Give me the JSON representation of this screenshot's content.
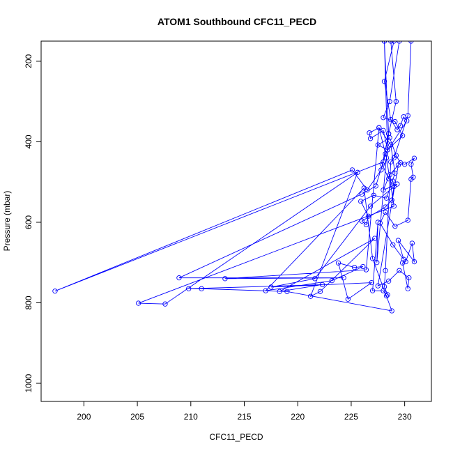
{
  "chart_data": {
    "type": "line",
    "title": "ATOM1 Southbound CFC11_PECD",
    "xlabel": "CFC11_PECD",
    "ylabel": "Pressure (mbar)",
    "xlim": [
      196,
      232.5
    ],
    "ylim": [
      1045,
      150
    ],
    "y_inverted": true,
    "x_ticks": [
      200,
      205,
      210,
      215,
      220,
      225,
      230
    ],
    "y_ticks": [
      200,
      400,
      600,
      800,
      1000
    ],
    "marker": "open-circle",
    "line_color": "#0000ff",
    "grid": false,
    "series": [
      {
        "values": [
          [
            228.7,
            150
          ],
          [
            229.2,
            300
          ],
          [
            228.5,
            380
          ],
          [
            227.8,
            470
          ],
          [
            226.5,
            520
          ],
          [
            225.1,
            470
          ],
          [
            197.3,
            771
          ],
          [
            228.0,
            450
          ],
          [
            227.3,
            510
          ],
          [
            226.0,
            530
          ],
          [
            208.9,
            738
          ],
          [
            224.3,
            738
          ],
          [
            213.2,
            740
          ],
          [
            226.4,
            718
          ],
          [
            227.6,
            365
          ],
          [
            228.3,
            440
          ],
          [
            229.0,
            560
          ],
          [
            205.1,
            801
          ],
          [
            207.6,
            803
          ],
          [
            225.6,
            476
          ],
          [
            221.2,
            784
          ],
          [
            222.1,
            772
          ],
          [
            227.2,
            640
          ],
          [
            218.3,
            772
          ],
          [
            222.3,
            755
          ],
          [
            209.8,
            765
          ],
          [
            211.0,
            765
          ],
          [
            219.0,
            772
          ],
          [
            228.8,
            820
          ],
          [
            227.0,
            690
          ],
          [
            226.2,
            515
          ],
          [
            217.0,
            770
          ],
          [
            223.2,
            745
          ],
          [
            226.1,
            710
          ],
          [
            225.3,
            712
          ],
          [
            223.8,
            701
          ],
          [
            224.7,
            791
          ],
          [
            226.9,
            750
          ],
          [
            217.5,
            761
          ],
          [
            221.6,
            740
          ],
          [
            226.8,
            560
          ],
          [
            229.3,
            505
          ],
          [
            228.0,
            520
          ],
          [
            228.6,
            482
          ],
          [
            229.4,
            458
          ],
          [
            227.5,
            758
          ],
          [
            228.5,
            746
          ],
          [
            229.5,
            720
          ],
          [
            230.4,
            738
          ],
          [
            230.3,
            765
          ],
          [
            229.8,
            701
          ],
          [
            230.1,
            698
          ],
          [
            230.7,
            652
          ],
          [
            230.9,
            698
          ],
          [
            229.4,
            645
          ],
          [
            229.9,
            692
          ],
          [
            228.9,
            656
          ],
          [
            227.7,
            602
          ],
          [
            228.2,
            575
          ],
          [
            229.1,
            610
          ],
          [
            230.3,
            595
          ],
          [
            230.6,
            493
          ],
          [
            230.8,
            488
          ],
          [
            230.6,
            456
          ],
          [
            230.9,
            441
          ],
          [
            230.0,
            456
          ],
          [
            229.6,
            452
          ],
          [
            229.2,
            434
          ],
          [
            228.6,
            390
          ],
          [
            227.5,
            408
          ],
          [
            228.4,
            420
          ],
          [
            229.8,
            385
          ],
          [
            229.1,
            350
          ],
          [
            228.0,
            340
          ],
          [
            228.6,
            300
          ],
          [
            229.5,
            150
          ],
          [
            228.1,
            150
          ],
          [
            228.4,
            420
          ],
          [
            228.0,
            372
          ],
          [
            226.8,
            392
          ],
          [
            226.7,
            378
          ],
          [
            227.6,
            365
          ],
          [
            228.7,
            408
          ],
          [
            229.1,
            478
          ],
          [
            228.3,
            540
          ],
          [
            227.1,
            533
          ],
          [
            225.9,
            548
          ],
          [
            226.6,
            585
          ],
          [
            226.4,
            606
          ],
          [
            226.0,
            597
          ],
          [
            228.2,
            562
          ],
          [
            228.8,
            545
          ],
          [
            229.0,
            511
          ],
          [
            228.9,
            498
          ],
          [
            228.5,
            492
          ],
          [
            227.9,
            456
          ],
          [
            228.2,
            430
          ],
          [
            230.2,
            348
          ],
          [
            229.9,
            338
          ],
          [
            229.6,
            360
          ],
          [
            229.3,
            370
          ],
          [
            228.7,
            345
          ],
          [
            228.1,
            250
          ],
          [
            229.0,
            150
          ],
          [
            230.6,
            150
          ],
          [
            230.3,
            335
          ],
          [
            229.0,
            440
          ],
          [
            228.7,
            450
          ],
          [
            228.2,
            720
          ],
          [
            228.1,
            760
          ],
          [
            228.4,
            780
          ],
          [
            228.3,
            783
          ],
          [
            228.0,
            770
          ],
          [
            227.0,
            770
          ],
          [
            227.5,
            600
          ],
          [
            227.4,
            700
          ],
          [
            228.5,
            380
          ],
          [
            228.1,
            150
          ]
        ]
      }
    ]
  }
}
